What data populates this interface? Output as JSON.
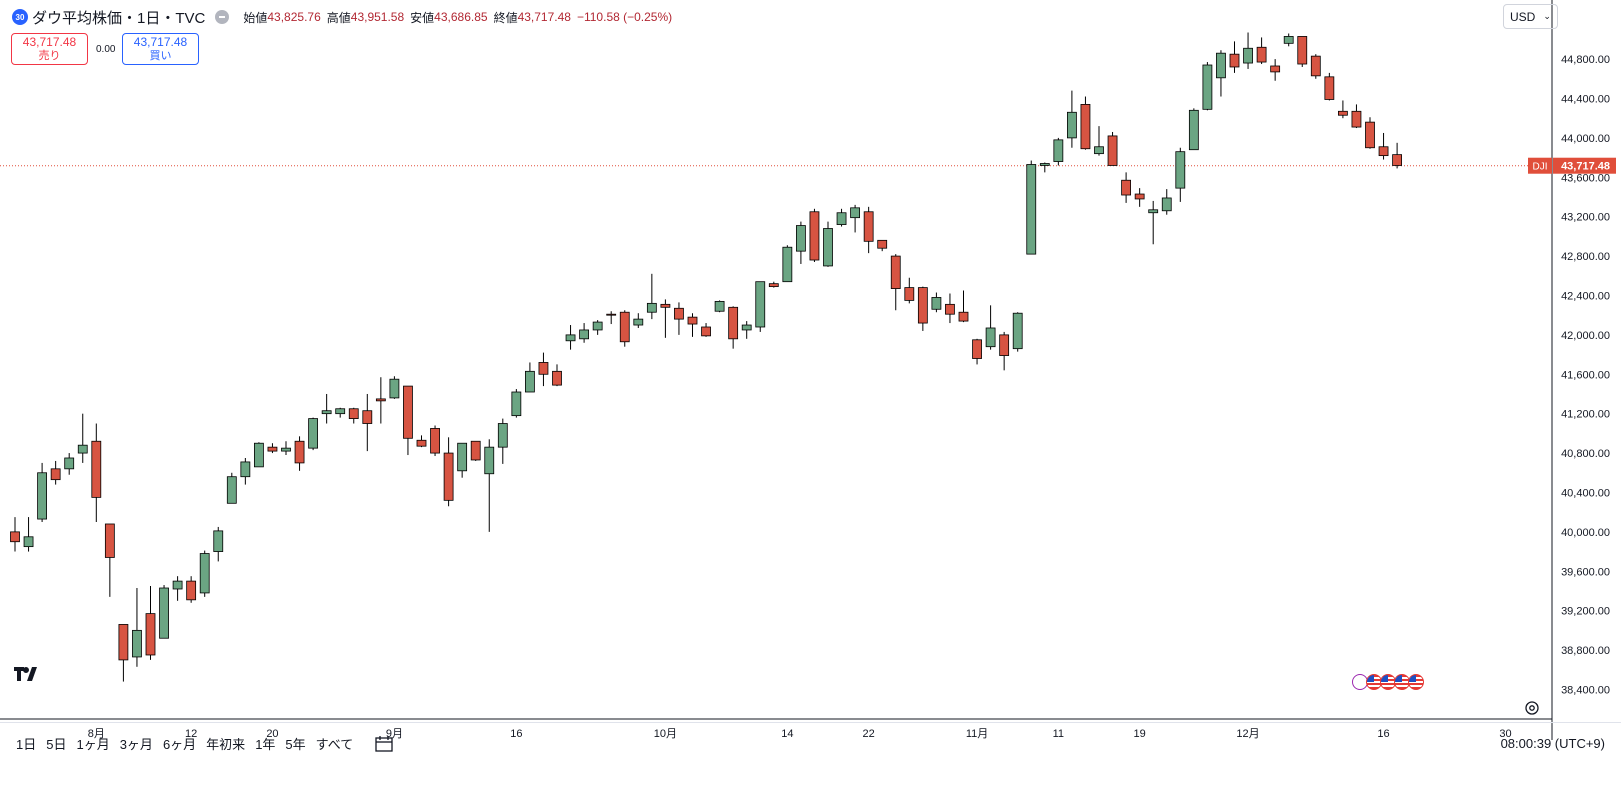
{
  "header": {
    "symbol_badge": "30",
    "symbol_name": "ダウ平均株価・1日・TVC",
    "open_label": "始値",
    "open_value": "43,825.76",
    "high_label": "高値",
    "high_value": "43,951.58",
    "low_label": "安値",
    "low_value": "43,686.85",
    "close_label": "終値",
    "close_value": "43,717.48",
    "change_value": "−110.58 (−0.25%)"
  },
  "trade": {
    "sell_price": "43,717.48",
    "sell_label": "売り",
    "spread": "0.00",
    "buy_price": "43,717.48",
    "buy_label": "買い"
  },
  "currency": {
    "value": "USD"
  },
  "bottom": {
    "ranges": [
      "1日",
      "5日",
      "1ヶ月",
      "3ヶ月",
      "6ヶ月",
      "年初来",
      "1年",
      "5年",
      "すべて"
    ],
    "clock": "08:00:39 (UTC+9)"
  },
  "colors": {
    "up": "#6ba583",
    "down": "#d75442",
    "wick": "#000000",
    "last_price": "#e04e3a",
    "text": "#131722",
    "grid_text": "#131722"
  },
  "chart_data": {
    "type": "candlestick",
    "symbol_label": "DJI",
    "last_price_label": "43,717.48",
    "last_price": 43717.48,
    "ylim": [
      38100,
      45400
    ],
    "y_ticks": [
      38400,
      38800,
      39200,
      39600,
      40000,
      40400,
      40800,
      41200,
      41600,
      42000,
      42400,
      42800,
      43200,
      43600,
      44000,
      44400,
      44800
    ],
    "y_tick_labels": [
      "38,400.00",
      "38,800.00",
      "39,200.00",
      "39,600.00",
      "40,000.00",
      "40,400.00",
      "40,800.00",
      "41,200.00",
      "41,600.00",
      "42,000.00",
      "42,400.00",
      "42,800.00",
      "43,200.00",
      "43,600.00",
      "44,000.00",
      "44,400.00",
      "44,800.00"
    ],
    "x_labels": [
      {
        "index": 6,
        "text": "8月"
      },
      {
        "index": 13,
        "text": "12"
      },
      {
        "index": 19,
        "text": "20"
      },
      {
        "index": 28,
        "text": "9月"
      },
      {
        "index": 37,
        "text": "16"
      },
      {
        "index": 48,
        "text": "10月"
      },
      {
        "index": 57,
        "text": "14"
      },
      {
        "index": 63,
        "text": "22"
      },
      {
        "index": 71,
        "text": "11月"
      },
      {
        "index": 77,
        "text": "11"
      },
      {
        "index": 83,
        "text": "19"
      },
      {
        "index": 91,
        "text": "12月"
      },
      {
        "index": 101,
        "text": "16"
      },
      {
        "index": 110,
        "text": "30"
      }
    ],
    "x_count": 111,
    "candles": [
      {
        "o": 40000,
        "h": 40150,
        "l": 39800,
        "c": 39900
      },
      {
        "o": 39850,
        "h": 40150,
        "l": 39800,
        "c": 39950
      },
      {
        "o": 40130,
        "h": 40700,
        "l": 40100,
        "c": 40600
      },
      {
        "o": 40640,
        "h": 40720,
        "l": 40480,
        "c": 40530
      },
      {
        "o": 40640,
        "h": 40800,
        "l": 40580,
        "c": 40750
      },
      {
        "o": 40800,
        "h": 41200,
        "l": 40700,
        "c": 40880
      },
      {
        "o": 40920,
        "h": 41100,
        "l": 40100,
        "c": 40350
      },
      {
        "o": 40080,
        "h": 40080,
        "l": 39340,
        "c": 39740
      },
      {
        "o": 39060,
        "h": 39060,
        "l": 38480,
        "c": 38700
      },
      {
        "o": 38730,
        "h": 39430,
        "l": 38630,
        "c": 39000
      },
      {
        "o": 39170,
        "h": 39450,
        "l": 38700,
        "c": 38750
      },
      {
        "o": 38920,
        "h": 39460,
        "l": 38920,
        "c": 39430
      },
      {
        "o": 39420,
        "h": 39550,
        "l": 39300,
        "c": 39500
      },
      {
        "o": 39500,
        "h": 39550,
        "l": 39280,
        "c": 39310
      },
      {
        "o": 39380,
        "h": 39810,
        "l": 39340,
        "c": 39780
      },
      {
        "o": 39800,
        "h": 40050,
        "l": 39700,
        "c": 40010
      },
      {
        "o": 40290,
        "h": 40600,
        "l": 40290,
        "c": 40560
      },
      {
        "o": 40560,
        "h": 40750,
        "l": 40480,
        "c": 40710
      },
      {
        "o": 40660,
        "h": 40910,
        "l": 40660,
        "c": 40900
      },
      {
        "o": 40860,
        "h": 40900,
        "l": 40800,
        "c": 40820
      },
      {
        "o": 40820,
        "h": 40920,
        "l": 40780,
        "c": 40850
      },
      {
        "o": 40920,
        "h": 40970,
        "l": 40620,
        "c": 40700
      },
      {
        "o": 40850,
        "h": 41160,
        "l": 40830,
        "c": 41150
      },
      {
        "o": 41200,
        "h": 41400,
        "l": 41100,
        "c": 41230
      },
      {
        "o": 41200,
        "h": 41260,
        "l": 41160,
        "c": 41250
      },
      {
        "o": 41250,
        "h": 41260,
        "l": 41100,
        "c": 41150
      },
      {
        "o": 41230,
        "h": 41400,
        "l": 40820,
        "c": 41100
      },
      {
        "o": 41350,
        "h": 41570,
        "l": 41100,
        "c": 41330
      },
      {
        "o": 41360,
        "h": 41580,
        "l": 41350,
        "c": 41550
      },
      {
        "o": 41480,
        "h": 41480,
        "l": 40780,
        "c": 40950
      },
      {
        "o": 40930,
        "h": 40980,
        "l": 40860,
        "c": 40870
      },
      {
        "o": 41050,
        "h": 41080,
        "l": 40770,
        "c": 40800
      },
      {
        "o": 40800,
        "h": 40960,
        "l": 40260,
        "c": 40320
      },
      {
        "o": 40620,
        "h": 40860,
        "l": 40550,
        "c": 40900
      },
      {
        "o": 40920,
        "h": 40920,
        "l": 40720,
        "c": 40730
      },
      {
        "o": 40590,
        "h": 40940,
        "l": 40000,
        "c": 40860
      },
      {
        "o": 40860,
        "h": 41150,
        "l": 40690,
        "c": 41100
      },
      {
        "o": 41180,
        "h": 41450,
        "l": 41160,
        "c": 41420
      },
      {
        "o": 41420,
        "h": 41720,
        "l": 41420,
        "c": 41630
      },
      {
        "o": 41720,
        "h": 41820,
        "l": 41480,
        "c": 41600
      },
      {
        "o": 41630,
        "h": 41700,
        "l": 41480,
        "c": 41490
      },
      {
        "o": 41940,
        "h": 42100,
        "l": 41850,
        "c": 42000
      },
      {
        "o": 41960,
        "h": 42120,
        "l": 41920,
        "c": 42050
      },
      {
        "o": 42050,
        "h": 42150,
        "l": 42000,
        "c": 42130
      },
      {
        "o": 42210,
        "h": 42240,
        "l": 42110,
        "c": 42200
      },
      {
        "o": 42230,
        "h": 42250,
        "l": 41880,
        "c": 41930
      },
      {
        "o": 42100,
        "h": 42220,
        "l": 42070,
        "c": 42160
      },
      {
        "o": 42230,
        "h": 42620,
        "l": 42160,
        "c": 42320
      },
      {
        "o": 42310,
        "h": 42360,
        "l": 41970,
        "c": 42280
      },
      {
        "o": 42270,
        "h": 42330,
        "l": 42000,
        "c": 42160
      },
      {
        "o": 42180,
        "h": 42220,
        "l": 41980,
        "c": 42110
      },
      {
        "o": 42080,
        "h": 42120,
        "l": 41980,
        "c": 41990
      },
      {
        "o": 42240,
        "h": 42350,
        "l": 42230,
        "c": 42340
      },
      {
        "o": 42280,
        "h": 42290,
        "l": 41860,
        "c": 41960
      },
      {
        "o": 42050,
        "h": 42140,
        "l": 41960,
        "c": 42100
      },
      {
        "o": 42080,
        "h": 42530,
        "l": 42030,
        "c": 42540
      },
      {
        "o": 42520,
        "h": 42540,
        "l": 42480,
        "c": 42490
      },
      {
        "o": 42540,
        "h": 42910,
        "l": 42540,
        "c": 42890
      },
      {
        "o": 42850,
        "h": 43150,
        "l": 42720,
        "c": 43110
      },
      {
        "o": 43250,
        "h": 43280,
        "l": 42740,
        "c": 42760
      },
      {
        "o": 42700,
        "h": 43150,
        "l": 42690,
        "c": 43080
      },
      {
        "o": 43120,
        "h": 43280,
        "l": 43100,
        "c": 43240
      },
      {
        "o": 43190,
        "h": 43320,
        "l": 43040,
        "c": 43290
      },
      {
        "o": 43250,
        "h": 43300,
        "l": 42830,
        "c": 42950
      },
      {
        "o": 42960,
        "h": 42950,
        "l": 42850,
        "c": 42880
      },
      {
        "o": 42800,
        "h": 42820,
        "l": 42250,
        "c": 42470
      },
      {
        "o": 42480,
        "h": 42580,
        "l": 42320,
        "c": 42350
      },
      {
        "o": 42480,
        "h": 42490,
        "l": 42040,
        "c": 42120
      },
      {
        "o": 42260,
        "h": 42430,
        "l": 42230,
        "c": 42380
      },
      {
        "o": 42310,
        "h": 42420,
        "l": 42120,
        "c": 42210
      },
      {
        "o": 42230,
        "h": 42450,
        "l": 42130,
        "c": 42140
      },
      {
        "o": 41950,
        "h": 41960,
        "l": 41700,
        "c": 41760
      },
      {
        "o": 41880,
        "h": 42300,
        "l": 41850,
        "c": 42070
      },
      {
        "o": 42000,
        "h": 42030,
        "l": 41640,
        "c": 41790
      },
      {
        "o": 41860,
        "h": 42230,
        "l": 41830,
        "c": 42220
      },
      {
        "o": 42820,
        "h": 43770,
        "l": 42820,
        "c": 43730
      },
      {
        "o": 43720,
        "h": 43750,
        "l": 43650,
        "c": 43740
      },
      {
        "o": 43760,
        "h": 44000,
        "l": 43720,
        "c": 43980
      },
      {
        "o": 44000,
        "h": 44480,
        "l": 43900,
        "c": 44260
      },
      {
        "o": 44340,
        "h": 44420,
        "l": 43880,
        "c": 43890
      },
      {
        "o": 43840,
        "h": 44120,
        "l": 43820,
        "c": 43910
      },
      {
        "o": 44020,
        "h": 44060,
        "l": 43740,
        "c": 43720
      },
      {
        "o": 43570,
        "h": 43650,
        "l": 43340,
        "c": 43420
      },
      {
        "o": 43430,
        "h": 43490,
        "l": 43300,
        "c": 43380
      },
      {
        "o": 43240,
        "h": 43360,
        "l": 42920,
        "c": 43270
      },
      {
        "o": 43260,
        "h": 43480,
        "l": 43220,
        "c": 43390
      },
      {
        "o": 43490,
        "h": 43900,
        "l": 43350,
        "c": 43860
      },
      {
        "o": 43880,
        "h": 44300,
        "l": 43880,
        "c": 44280
      },
      {
        "o": 44290,
        "h": 44770,
        "l": 44280,
        "c": 44740
      },
      {
        "o": 44610,
        "h": 44890,
        "l": 44420,
        "c": 44860
      },
      {
        "o": 44850,
        "h": 44980,
        "l": 44660,
        "c": 44720
      },
      {
        "o": 44760,
        "h": 45070,
        "l": 44700,
        "c": 44910
      },
      {
        "o": 44920,
        "h": 45020,
        "l": 44750,
        "c": 44770
      },
      {
        "o": 44730,
        "h": 44800,
        "l": 44580,
        "c": 44670
      },
      {
        "o": 44960,
        "h": 45060,
        "l": 44930,
        "c": 45030
      },
      {
        "o": 45030,
        "h": 45020,
        "l": 44720,
        "c": 44750
      },
      {
        "o": 44830,
        "h": 44850,
        "l": 44600,
        "c": 44630
      },
      {
        "o": 44620,
        "h": 44660,
        "l": 44380,
        "c": 44390
      },
      {
        "o": 44270,
        "h": 44380,
        "l": 44200,
        "c": 44230
      },
      {
        "o": 44270,
        "h": 44340,
        "l": 44100,
        "c": 44110
      },
      {
        "o": 44160,
        "h": 44210,
        "l": 43890,
        "c": 43900
      },
      {
        "o": 43910,
        "h": 44050,
        "l": 43780,
        "c": 43820
      },
      {
        "o": 43830,
        "h": 43950,
        "l": 43690,
        "c": 43720
      }
    ]
  }
}
